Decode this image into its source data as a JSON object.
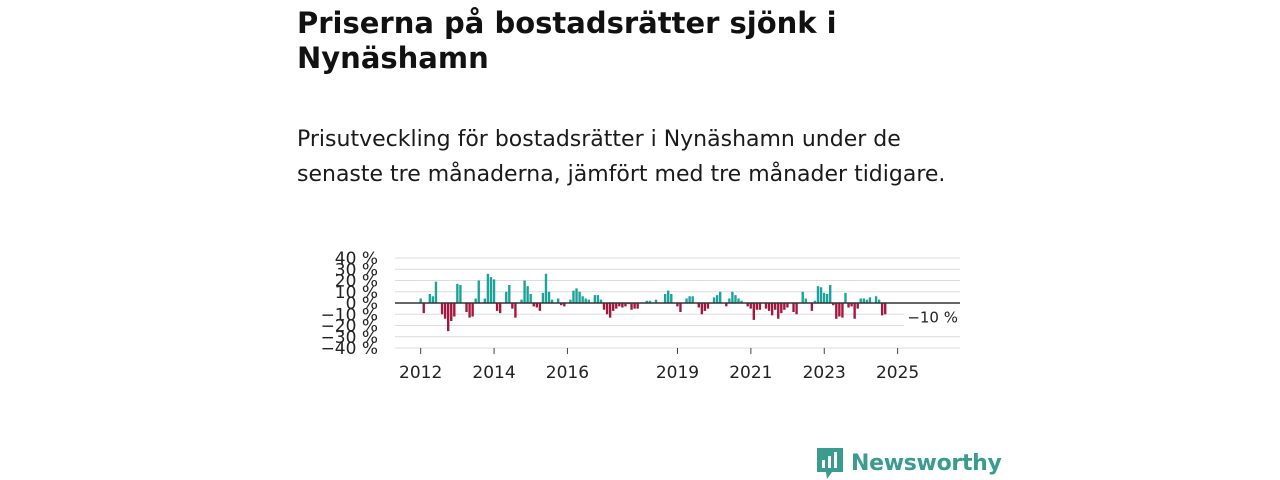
{
  "header": {
    "title": "Priserna på bostadsrätter sjönk i Nynäshamn",
    "subtitle": "Prisutveckling för bostadsrätter i Nynäshamn under de senaste tre månaderna, jämfört med tre månader tidigare."
  },
  "brand": {
    "name": "Newsworthy"
  },
  "colors": {
    "positive": "#1aa39a",
    "negative": "#a3173f",
    "zero_line": "#333333",
    "grid": "#dcdcdc",
    "brand": "#3a9b8f"
  },
  "chart_data": {
    "type": "bar",
    "title": "Priserna på bostadsrätter sjönk i Nynäshamn",
    "xlabel": "",
    "ylabel": "",
    "ylim": [
      -40,
      40
    ],
    "yticks": [
      40,
      30,
      20,
      10,
      0,
      -10,
      -20,
      -30,
      -40
    ],
    "ytick_labels": [
      "40 %",
      "30 %",
      "20 %",
      "10 %",
      "0 %",
      "−10 %",
      "−20 %",
      "−30 %",
      "−40 %"
    ],
    "xtick_labels": [
      "2012",
      "2014",
      "2016",
      "2019",
      "2021",
      "2023",
      "2025"
    ],
    "xtick_years": [
      2012,
      2014,
      2016,
      2019,
      2021,
      2023,
      2025
    ],
    "x_start": 2011.3,
    "x_end": 2026.7,
    "annotation": "−10 %",
    "series": [
      {
        "name": "Prisutveckling",
        "start": 2012.0,
        "step": 0.0833,
        "values": [
          4,
          -9,
          0,
          8,
          6,
          19,
          0,
          -10,
          -14,
          -25,
          -16,
          -12,
          17,
          16,
          0,
          -8,
          -13,
          -12,
          4,
          20,
          0,
          4,
          26,
          23,
          21,
          -7,
          -9,
          0,
          10,
          16,
          -5,
          -13,
          0,
          3,
          20,
          15,
          8,
          -3,
          -4,
          -7,
          9,
          26,
          10,
          3,
          0,
          4,
          -2,
          -3,
          0,
          3,
          11,
          13,
          10,
          6,
          4,
          3,
          0,
          7,
          7,
          3,
          -6,
          -10,
          -13,
          -7,
          -5,
          -3,
          -4,
          -3,
          -1,
          -6,
          -5,
          -5,
          0,
          0,
          2,
          2,
          0,
          3,
          0,
          0,
          8,
          11,
          8,
          0,
          -3,
          -8,
          0,
          4,
          6,
          6,
          0,
          -4,
          -10,
          -7,
          -5,
          0,
          5,
          7,
          10,
          0,
          -3,
          4,
          10,
          7,
          4,
          2,
          0,
          -3,
          -5,
          -15,
          -6,
          -6,
          0,
          -5,
          -7,
          -11,
          -6,
          -14,
          -9,
          -6,
          -4,
          0,
          -8,
          -10,
          0,
          10,
          4,
          0,
          -7,
          2,
          15,
          14,
          9,
          8,
          16,
          -2,
          -14,
          -12,
          -13,
          9,
          -4,
          -3,
          -14,
          -5,
          4,
          4,
          3,
          5,
          0,
          6,
          3,
          -11,
          -10
        ]
      }
    ]
  }
}
